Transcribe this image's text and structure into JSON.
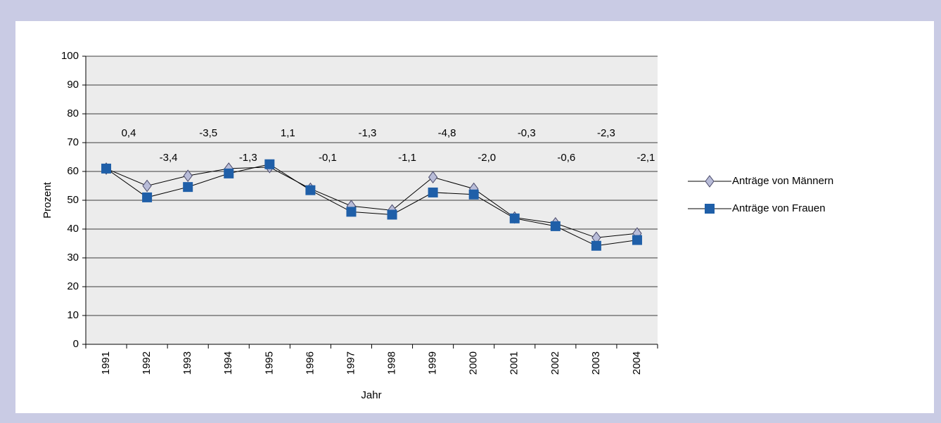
{
  "chart_data": {
    "type": "line",
    "x_label": "Jahr",
    "y_label": "Prozent",
    "categories": [
      "1991",
      "1992",
      "1993",
      "1994",
      "1995",
      "1996",
      "1997",
      "1998",
      "1999",
      "2000",
      "2001",
      "2002",
      "2003",
      "2004"
    ],
    "series": [
      {
        "name": "Anträge von Männern",
        "color": "#b8bcd8",
        "marker": "diamond",
        "values": [
          61,
          55,
          58.5,
          61,
          61.5,
          54,
          48,
          46.5,
          58,
          54,
          44,
          42,
          37,
          38.5
        ]
      },
      {
        "name": "Anträge von Frauen",
        "color": "#1f5fa8",
        "marker": "square",
        "values": [
          61,
          51,
          54.6,
          59.3,
          62.5,
          53.5,
          46,
          45,
          52.7,
          52,
          43.7,
          41,
          34.2,
          36.2
        ]
      }
    ],
    "annotations": [
      "0,4",
      "-3,4",
      "-3,5",
      "-1,3",
      "1,1",
      "-0,1",
      "-1,3",
      "-1,1",
      "-4,8",
      "-2,0",
      "-0,3",
      "-0,6",
      "-2,3",
      "-2,1"
    ],
    "ylim": [
      0,
      100
    ],
    "yticks": [
      0,
      10,
      20,
      30,
      40,
      50,
      60,
      70,
      80,
      90,
      100
    ],
    "grid": true,
    "legend": "right"
  }
}
